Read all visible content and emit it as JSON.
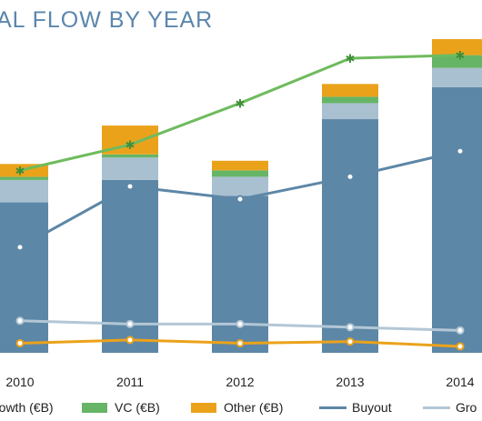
{
  "title": "AL FLOW BY YEAR",
  "chart_data": {
    "type": "bar",
    "categories": [
      "2010",
      "2011",
      "2012",
      "2013",
      "2014"
    ],
    "ylim": [
      0,
      100
    ],
    "stacked_series": [
      {
        "name": "",
        "color": "#5d87a6",
        "values": [
          47,
          54,
          49,
          73,
          83
        ]
      },
      {
        "name": "Growth (€B)",
        "color": "#a9c0d1",
        "values": [
          7,
          7,
          6,
          5,
          6
        ]
      },
      {
        "name": "VC (€B)",
        "color": "#66b566",
        "values": [
          1,
          1,
          2,
          2,
          4
        ]
      },
      {
        "name": "Other (€B)",
        "color": "#eba21b",
        "values": [
          4,
          9,
          3,
          4,
          5
        ]
      }
    ],
    "line_series": [
      {
        "name": "",
        "color": "#6fbb5e",
        "marker": "star",
        "values": [
          57,
          65,
          78,
          92,
          93
        ]
      },
      {
        "name": "Buyout",
        "color": "#5d87a6",
        "marker": "dot",
        "values": [
          33,
          52,
          48,
          55,
          63
        ]
      },
      {
        "name": "Gro",
        "color": "#b3c7d6",
        "marker": "dot",
        "values": [
          10,
          9,
          9,
          8,
          7
        ]
      },
      {
        "name": "",
        "color": "#eba21b",
        "marker": "dot",
        "values": [
          3,
          4,
          3,
          3.5,
          2
        ]
      }
    ]
  },
  "legend": [
    {
      "label": "rowth (€B)",
      "kind": "swatch",
      "color": "#a9c0d1"
    },
    {
      "label": "VC (€B)",
      "kind": "swatch",
      "color": "#66b566"
    },
    {
      "label": "Other (€B)",
      "kind": "swatch",
      "color": "#eba21b"
    },
    {
      "label": "Buyout",
      "kind": "line",
      "color": "#5d87a6"
    },
    {
      "label": "Gro",
      "kind": "line",
      "color": "#b3c7d6"
    }
  ]
}
